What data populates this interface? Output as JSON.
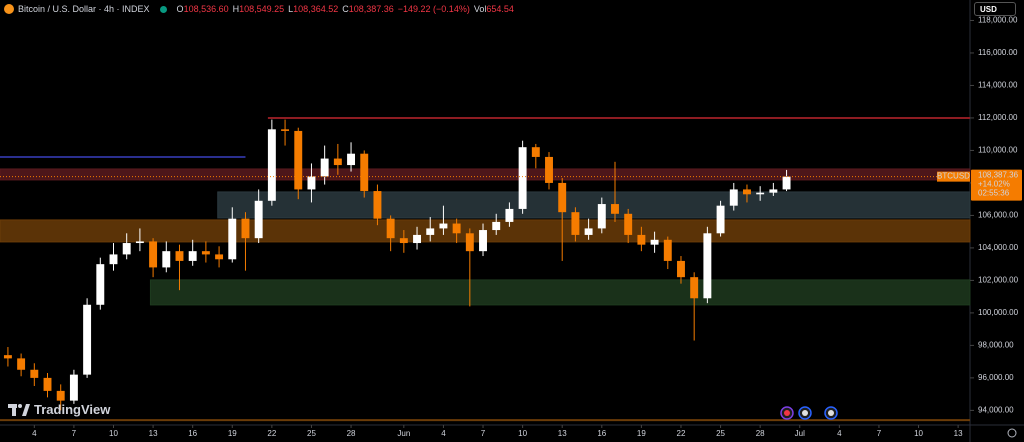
{
  "header": {
    "symbol": "Bitcoin / U.S. Dollar · 4h · INDEX",
    "ohlc": [
      {
        "key": "O",
        "value": "108,536.60"
      },
      {
        "key": "H",
        "value": "108,549.25"
      },
      {
        "key": "L",
        "value": "108,364.52"
      },
      {
        "key": "C",
        "value": "108,387.36"
      }
    ],
    "change": "−149.22 (−0.14%)",
    "volume_key": "Vol",
    "volume": "654.54"
  },
  "currency": "USD",
  "logo": "TradingView",
  "chart_data": {
    "type": "candlestick",
    "up_color": "#ffffff",
    "down_color": "#f57c00",
    "grid": false,
    "xlim": [
      1.4,
      74.9
    ],
    "ylim": [
      93100,
      119260
    ],
    "xticks": [
      4,
      7,
      10,
      13,
      16,
      19,
      22,
      25,
      28,
      {
        "value": 32,
        "label": "Jun"
      },
      {
        "value": 35,
        "label": "4"
      },
      {
        "value": 38,
        "label": "7"
      },
      {
        "value": 41,
        "label": "10"
      },
      {
        "value": 44,
        "label": "13"
      },
      {
        "value": 47,
        "label": "16"
      },
      {
        "value": 50,
        "label": "19"
      },
      {
        "value": 53,
        "label": "22"
      },
      {
        "value": 56,
        "label": "25"
      },
      {
        "value": 59,
        "label": "28"
      },
      {
        "value": 62,
        "label": "Jul"
      },
      {
        "value": 65,
        "label": "4"
      },
      {
        "value": 68,
        "label": "7"
      },
      {
        "value": 71,
        "label": "10"
      },
      {
        "value": 74,
        "label": "13"
      }
    ],
    "yticks": [
      {
        "value": 94000,
        "label": "94,000.00"
      },
      {
        "value": 96000,
        "label": "96,000.00"
      },
      {
        "value": 98000,
        "label": "98,000.00"
      },
      {
        "value": 100000,
        "label": "100,000.00"
      },
      {
        "value": 102000,
        "label": "102,000.00"
      },
      {
        "value": 104000,
        "label": "104,000.00"
      },
      {
        "value": 106000,
        "label": "106,000.00"
      },
      {
        "value": 108000,
        "label": "108,000.00"
      },
      {
        "value": 110000,
        "label": "110,000.00"
      },
      {
        "value": 112000,
        "label": "112,000.00"
      },
      {
        "value": 114000,
        "label": "114,000.00"
      },
      {
        "value": 116000,
        "label": "116,000.00"
      },
      {
        "value": 118000,
        "label": "118,000.00"
      }
    ],
    "candles": {
      "x": [
        2,
        3,
        4,
        5,
        6,
        7,
        8,
        9,
        10,
        11,
        12,
        13,
        14,
        15,
        16,
        17,
        18,
        19,
        20,
        21,
        22,
        23,
        24,
        25,
        26,
        27,
        28,
        29,
        30,
        31,
        32,
        33,
        34,
        35,
        36,
        37,
        38,
        39,
        40,
        41,
        42,
        43,
        44,
        45,
        46,
        47,
        48,
        49,
        50,
        51,
        52,
        53,
        54,
        55,
        56,
        57,
        58,
        59,
        60,
        61
      ],
      "open": [
        97400,
        97200,
        96500,
        96000,
        95200,
        94600,
        96200,
        100500,
        103000,
        103600,
        104300,
        104400,
        102800,
        103800,
        103200,
        103800,
        103600,
        103300,
        105800,
        104600,
        106900,
        111300,
        111200,
        107600,
        108400,
        109500,
        109100,
        109800,
        107500,
        105800,
        104600,
        104300,
        104800,
        105200,
        105500,
        104900,
        103800,
        105100,
        105600,
        106400,
        110200,
        109600,
        108000,
        106200,
        104800,
        105200,
        106700,
        106100,
        104800,
        104200,
        104500,
        103200,
        102200,
        100900,
        104900,
        106600,
        107600,
        107300,
        107400,
        107600
      ],
      "high": [
        97900,
        97500,
        96900,
        96300,
        95600,
        96500,
        100900,
        103400,
        104300,
        104900,
        105200,
        104600,
        104400,
        104200,
        104500,
        104400,
        104100,
        106500,
        106200,
        107600,
        111900,
        111900,
        111400,
        109200,
        110300,
        110400,
        110500,
        110000,
        107900,
        106000,
        105100,
        105300,
        105900,
        106600,
        105800,
        105200,
        105500,
        106100,
        106800,
        110600,
        110400,
        109900,
        108300,
        106500,
        105800,
        107100,
        109300,
        106400,
        105300,
        105000,
        104700,
        103500,
        102500,
        105300,
        106900,
        108000,
        107900,
        107800,
        108000,
        108800
      ],
      "low": [
        96700,
        96100,
        95500,
        94800,
        94000,
        94400,
        96000,
        100200,
        102600,
        103300,
        103800,
        102200,
        102500,
        101400,
        102900,
        103100,
        102800,
        103100,
        102600,
        104300,
        106600,
        110300,
        107000,
        106800,
        107900,
        108500,
        108700,
        107100,
        105400,
        103800,
        103700,
        103900,
        104400,
        104800,
        104300,
        100400,
        103500,
        104800,
        105300,
        106100,
        108900,
        107600,
        103200,
        104400,
        104500,
        104900,
        105600,
        104300,
        103800,
        103700,
        102700,
        101800,
        98300,
        100600,
        104700,
        106300,
        106800,
        106900,
        107200,
        107500
      ],
      "close": [
        97200,
        96500,
        96000,
        95200,
        94600,
        96200,
        100500,
        103000,
        103600,
        104300,
        104400,
        102800,
        103800,
        103200,
        103800,
        103600,
        103300,
        105800,
        104600,
        106900,
        111300,
        111200,
        107600,
        108400,
        109500,
        109100,
        109800,
        107500,
        105800,
        104600,
        104300,
        104800,
        105200,
        105500,
        104900,
        103800,
        105100,
        105600,
        106400,
        110200,
        109600,
        108000,
        106200,
        104800,
        105200,
        106700,
        106100,
        104800,
        104200,
        104500,
        103200,
        102200,
        100900,
        104900,
        106600,
        107600,
        107300,
        107400,
        107600,
        108387.36
      ]
    },
    "zones": [
      {
        "low": 108185,
        "high": 108860,
        "color": "#5a1a1f"
      },
      {
        "low": 105846,
        "high": 107446,
        "x_from": 17.9,
        "color": "#2c3a40"
      },
      {
        "low": 104369,
        "high": 105723,
        "color": "#6b3c08"
      },
      {
        "low": 100492,
        "high": 102031,
        "x_from": 12.8,
        "color": "#1e3a1f"
      }
    ],
    "lines": [
      {
        "value": 112000,
        "x_from": 21.7,
        "color": "#8e1c22"
      },
      {
        "value": 109600,
        "x_to": 20,
        "color": "#2a2f8f"
      },
      {
        "value": 93400,
        "color": "#6b3c08"
      }
    ],
    "price_tag": {
      "symbol": "BTCUSD",
      "label": "108,387.36",
      "change_pct": "+14.02%",
      "countdown": "02:55:36"
    }
  }
}
